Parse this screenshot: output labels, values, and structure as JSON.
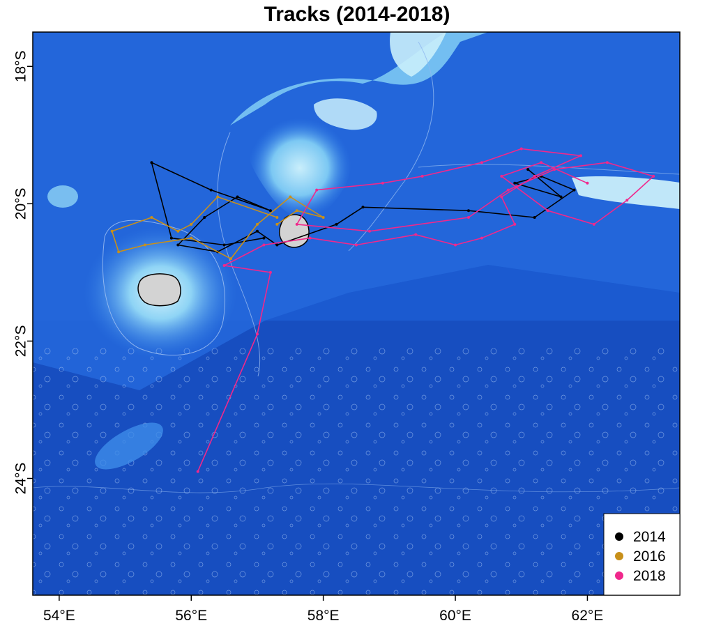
{
  "title": "Tracks (2014-2018)",
  "map": {
    "lon_range": [
      53.6,
      63.4
    ],
    "lat_range": [
      -25.7,
      -17.5
    ],
    "x_ticks": [
      {
        "value": 54,
        "label": "54°E"
      },
      {
        "value": 56,
        "label": "56°E"
      },
      {
        "value": 58,
        "label": "58°E"
      },
      {
        "value": 60,
        "label": "60°E"
      },
      {
        "value": 62,
        "label": "62°E"
      }
    ],
    "y_ticks": [
      {
        "value": -18,
        "label": "18°S"
      },
      {
        "value": -20,
        "label": "20°S"
      },
      {
        "value": -22,
        "label": "22°S"
      },
      {
        "value": -24,
        "label": "24°S"
      }
    ],
    "background": {
      "deep_color": "#1650c8",
      "mid_color": "#2f7de6",
      "shallow_color": "#8fd4f5",
      "bank_color": "#c9eefb",
      "land_color": "#d3d3d3"
    },
    "islands": [
      {
        "name": "Réunion",
        "lon": 55.5,
        "lat": -21.1
      },
      {
        "name": "Mauritius",
        "lon": 57.55,
        "lat": -20.25
      }
    ],
    "legend": {
      "position": "bottom-right",
      "entries": [
        {
          "label": "2014",
          "color": "#000000"
        },
        {
          "label": "2016",
          "color": "#c8901a"
        },
        {
          "label": "2018",
          "color": "#f0288c"
        }
      ]
    }
  },
  "tracks": [
    {
      "year": "2014",
      "color": "#000000",
      "points": [
        [
          57.1,
          -20.5
        ],
        [
          56.5,
          -20.6
        ],
        [
          55.7,
          -20.5
        ],
        [
          55.4,
          -19.4
        ],
        [
          56.3,
          -19.8
        ],
        [
          57.2,
          -20.1
        ],
        [
          56.7,
          -19.9
        ],
        [
          56.2,
          -20.2
        ],
        [
          55.8,
          -20.6
        ],
        [
          56.4,
          -20.7
        ],
        [
          57.0,
          -20.4
        ],
        [
          57.3,
          -20.6
        ],
        [
          58.2,
          -20.3
        ],
        [
          58.6,
          -20.05
        ],
        [
          60.2,
          -20.1
        ],
        [
          61.2,
          -20.2
        ],
        [
          61.8,
          -19.8
        ],
        [
          61.3,
          -19.6
        ],
        [
          60.9,
          -19.7
        ],
        [
          61.6,
          -19.9
        ],
        [
          61.1,
          -19.5
        ]
      ]
    },
    {
      "year": "2016",
      "color": "#c8901a",
      "points": [
        [
          57.3,
          -20.2
        ],
        [
          56.4,
          -19.9
        ],
        [
          56.0,
          -20.3
        ],
        [
          55.8,
          -20.4
        ],
        [
          55.4,
          -20.2
        ],
        [
          54.8,
          -20.4
        ],
        [
          54.9,
          -20.7
        ],
        [
          55.3,
          -20.6
        ],
        [
          56.0,
          -20.5
        ],
        [
          56.6,
          -20.8
        ],
        [
          57.0,
          -20.3
        ],
        [
          57.5,
          -19.9
        ],
        [
          58.0,
          -20.2
        ],
        [
          57.6,
          -20.1
        ],
        [
          57.3,
          -20.3
        ]
      ]
    },
    {
      "year": "2018",
      "color": "#f0288c",
      "points": [
        [
          56.1,
          -23.9
        ],
        [
          57.0,
          -21.9
        ],
        [
          57.2,
          -21.0
        ],
        [
          56.5,
          -20.9
        ],
        [
          57.1,
          -20.6
        ],
        [
          57.8,
          -20.5
        ],
        [
          58.5,
          -20.6
        ],
        [
          59.4,
          -20.45
        ],
        [
          60.0,
          -20.6
        ],
        [
          60.4,
          -20.5
        ],
        [
          60.9,
          -20.3
        ],
        [
          60.7,
          -19.9
        ],
        [
          61.2,
          -19.6
        ],
        [
          61.9,
          -19.3
        ],
        [
          61.0,
          -19.2
        ],
        [
          60.4,
          -19.4
        ],
        [
          59.5,
          -19.6
        ],
        [
          58.9,
          -19.7
        ],
        [
          57.9,
          -19.8
        ],
        [
          57.6,
          -20.3
        ],
        [
          58.7,
          -20.4
        ],
        [
          60.2,
          -20.2
        ],
        [
          60.8,
          -19.8
        ],
        [
          61.5,
          -19.5
        ],
        [
          62.3,
          -19.4
        ],
        [
          63.0,
          -19.6
        ],
        [
          62.6,
          -19.95
        ],
        [
          62.1,
          -20.3
        ],
        [
          61.4,
          -20.1
        ],
        [
          60.7,
          -19.6
        ],
        [
          61.3,
          -19.4
        ],
        [
          62.0,
          -19.7
        ]
      ]
    }
  ]
}
